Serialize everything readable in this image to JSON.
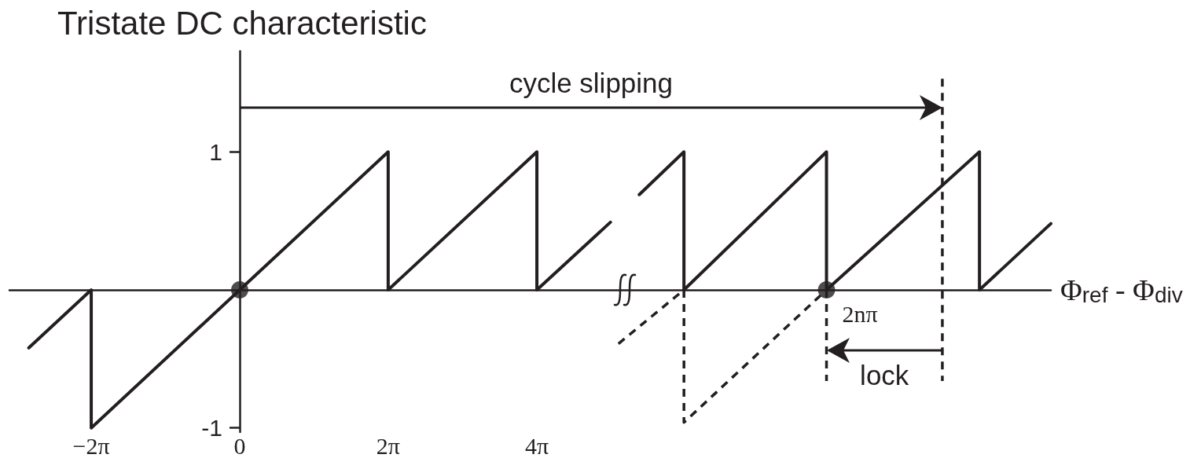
{
  "chart_data": {
    "type": "line",
    "title": "Tristate DC characteristic",
    "xlabel": "Φ$_{ref}$ - Φ$_{div}$",
    "xlim": [
      -9.74,
      34.31
    ],
    "ylim": [
      -1.03,
      1.73
    ],
    "xticks": [
      {
        "value": -6.28,
        "label": "−2π"
      },
      0,
      {
        "value": 6.28,
        "label": "2π"
      },
      {
        "value": 12.57,
        "label": "4π"
      }
    ],
    "yticks": [
      -1,
      1
    ],
    "series": [
      {
        "color": "#231f20",
        "line_style": "solid",
        "x": [
          -8.92,
          -6.28,
          -6.28,
          6.28,
          6.28,
          12.57,
          12.57,
          15.68
        ],
        "values": [
          -0.42,
          0,
          -1,
          1,
          0,
          1,
          0,
          0.49
        ]
      },
      {
        "color": "#231f20",
        "line_style": "solid",
        "x": [
          16.9,
          18.79,
          18.79,
          24.82,
          24.82,
          31.29,
          31.29,
          34.31
        ],
        "values": [
          0.69,
          1,
          0,
          1,
          0,
          1,
          0,
          0.48
        ]
      },
      {
        "color": "#231f20",
        "line_style": "dashed",
        "x": [
          16.02,
          18.79,
          18.79,
          24.82
        ],
        "values": [
          -0.39,
          0,
          -0.96,
          0
        ]
      },
      {
        "color": "#231f20",
        "line_style": "dashed",
        "x": [
          24.82,
          24.82
        ],
        "values": [
          0,
          -0.66
        ]
      },
      {
        "color": "#231f20",
        "line_style": "dashed",
        "x": [
          29.72,
          29.72
        ],
        "values": [
          1.53,
          -0.66
        ]
      },
      {
        "type": "scatter",
        "color": "#231f20",
        "marker": "circle",
        "x": [
          0,
          24.82
        ],
        "values": [
          0,
          0
        ]
      }
    ],
    "annotations": [
      "cycle slipping",
      "lock",
      {
        "text": "2nπ",
        "x": 24.82,
        "y": 0
      }
    ]
  }
}
